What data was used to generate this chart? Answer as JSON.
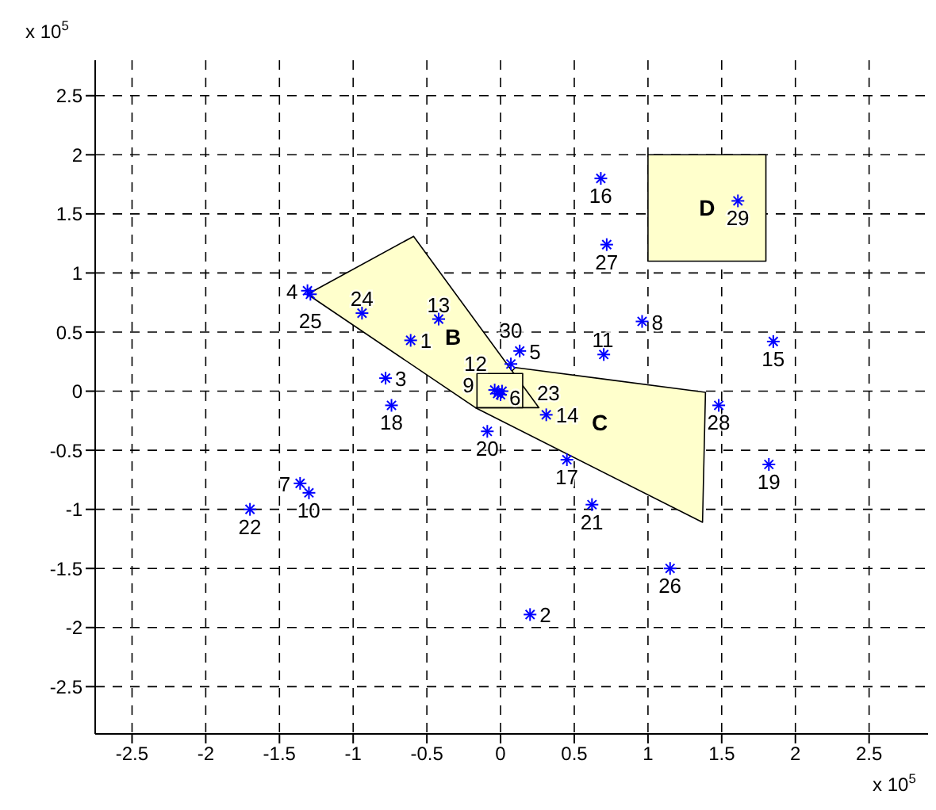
{
  "chart_data": {
    "type": "scatter",
    "xlabel": "x 10$^{5}$",
    "ylabel": "x 10$^{5}$",
    "xlim": [
      -2.75,
      2.9
    ],
    "ylim": [
      -2.9,
      2.8
    ],
    "xticks": [
      -2.5,
      -2,
      -1.5,
      -1,
      -0.5,
      0,
      0.5,
      1,
      1.5,
      2,
      2.5
    ],
    "yticks": [
      -2.5,
      -2,
      -1.5,
      -1,
      -0.5,
      0,
      0.5,
      1,
      1.5,
      2,
      2.5
    ],
    "grid": true,
    "legend": false,
    "series": [
      {
        "type": "area",
        "name": "C",
        "color": "#ffffcc",
        "x": [
          -0.17,
          0.1,
          1.39,
          1.37
        ],
        "values": [
          -0.14,
          0.2,
          -0.01,
          -1.11
        ]
      },
      {
        "type": "area",
        "name": "B",
        "color": "#ffffcc",
        "x": [
          -1.31,
          -0.59,
          0.26,
          -0.17
        ],
        "values": [
          0.82,
          1.31,
          -0.14,
          -0.14
        ]
      },
      {
        "type": "area",
        "name": "D",
        "color": "#ffffcc",
        "x": [
          1.0,
          1.8,
          1.8,
          1.0
        ],
        "values": [
          2.0,
          2.0,
          1.1,
          1.1
        ]
      },
      {
        "type": "area",
        "color": "#ffffcc",
        "x": [
          -0.16,
          0.15,
          0.15,
          -0.16
        ],
        "values": [
          0.15,
          0.15,
          -0.14,
          -0.14
        ]
      },
      {
        "type": "scatter",
        "marker": "cross",
        "color": "#0000ff",
        "x": [
          -0.61,
          0.2,
          -0.78,
          -1.31,
          0.13,
          -0.04,
          -1.36,
          0.96,
          -0.02,
          -1.3,
          0.7,
          0.0,
          -0.42,
          0.31,
          1.85,
          0.68,
          0.45,
          -0.74,
          1.82,
          -0.09,
          0.62,
          -1.7,
          0.01,
          -0.94,
          -1.29,
          1.15,
          0.72,
          1.48,
          1.61,
          0.07
        ],
        "values": [
          0.43,
          -1.89,
          0.11,
          0.85,
          0.34,
          0.01,
          -0.78,
          0.59,
          -0.02,
          -0.86,
          0.31,
          -0.03,
          0.61,
          -0.2,
          0.42,
          1.8,
          -0.58,
          -0.12,
          -0.62,
          -0.34,
          -0.96,
          -1.0,
          0.0,
          0.66,
          0.82,
          -1.5,
          1.24,
          -0.12,
          1.61,
          0.23
        ]
      }
    ],
    "annotations": [
      {
        "text": "1",
        "x": -0.61,
        "y": 0.43
      },
      {
        "text": "2",
        "x": 0.2,
        "y": -1.89
      },
      {
        "text": "3",
        "x": -0.78,
        "y": 0.11
      },
      {
        "text": "4",
        "x": -1.31,
        "y": 0.85
      },
      {
        "text": "5",
        "x": 0.13,
        "y": 0.34
      },
      {
        "text": "6",
        "x": -0.04,
        "y": 0.01
      },
      {
        "text": "7",
        "x": -1.36,
        "y": -0.78
      },
      {
        "text": "8",
        "x": 0.96,
        "y": 0.59
      },
      {
        "text": "9",
        "x": -0.02,
        "y": -0.02
      },
      {
        "text": "10",
        "x": -1.3,
        "y": -0.86
      },
      {
        "text": "11",
        "x": 0.7,
        "y": 0.31
      },
      {
        "text": "12",
        "x": 0.0,
        "y": -0.03
      },
      {
        "text": "13",
        "x": -0.42,
        "y": 0.61
      },
      {
        "text": "14",
        "x": 0.31,
        "y": -0.2
      },
      {
        "text": "15",
        "x": 1.85,
        "y": 0.42
      },
      {
        "text": "16",
        "x": 0.68,
        "y": 1.8
      },
      {
        "text": "17",
        "x": 0.45,
        "y": -0.58
      },
      {
        "text": "18",
        "x": -0.74,
        "y": -0.12
      },
      {
        "text": "19",
        "x": 1.82,
        "y": -0.62
      },
      {
        "text": "20",
        "x": -0.09,
        "y": -0.34
      },
      {
        "text": "21",
        "x": 0.62,
        "y": -0.96
      },
      {
        "text": "22",
        "x": -1.7,
        "y": -1.0
      },
      {
        "text": "23",
        "x": 0.01,
        "y": 0.0
      },
      {
        "text": "24",
        "x": -0.94,
        "y": 0.66
      },
      {
        "text": "25",
        "x": -1.29,
        "y": 0.82
      },
      {
        "text": "26",
        "x": 1.15,
        "y": -1.5
      },
      {
        "text": "27",
        "x": 0.72,
        "y": 1.24
      },
      {
        "text": "28",
        "x": 1.48,
        "y": -0.12
      },
      {
        "text": "29",
        "x": 1.61,
        "y": 1.61
      },
      {
        "text": "30",
        "x": 0.07,
        "y": 0.23
      }
    ]
  }
}
